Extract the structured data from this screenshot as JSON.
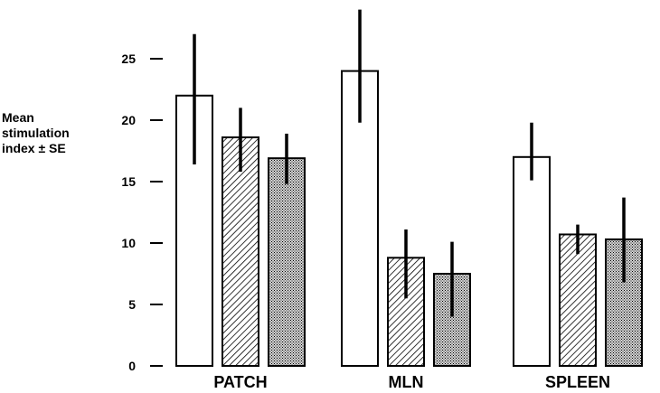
{
  "chart_data": {
    "type": "bar",
    "title": "",
    "ylabel_lines": [
      "Mean",
      "stimulation",
      "index ± SE"
    ],
    "xlabel": "",
    "ylim": [
      0,
      25
    ],
    "yticks": [
      "0",
      "5",
      "10",
      "15",
      "20",
      "25"
    ],
    "categories": [
      "PATCH",
      "MLN",
      "SPLEEN"
    ],
    "series": [
      {
        "pattern": "open",
        "values": [
          22.0,
          24.0,
          17.0
        ],
        "err_low": [
          16.4,
          19.8,
          15.1
        ],
        "err_high": [
          27.0,
          29.0,
          19.8
        ]
      },
      {
        "pattern": "hatched",
        "values": [
          18.6,
          8.8,
          10.7
        ],
        "err_low": [
          15.8,
          5.5,
          9.1
        ],
        "err_high": [
          21.0,
          11.1,
          11.5
        ]
      },
      {
        "pattern": "stippled",
        "values": [
          16.9,
          7.5,
          10.3
        ],
        "err_low": [
          14.8,
          4.0,
          6.8
        ],
        "err_high": [
          18.9,
          10.1,
          13.7
        ]
      }
    ],
    "grid": false,
    "legend": "none"
  }
}
